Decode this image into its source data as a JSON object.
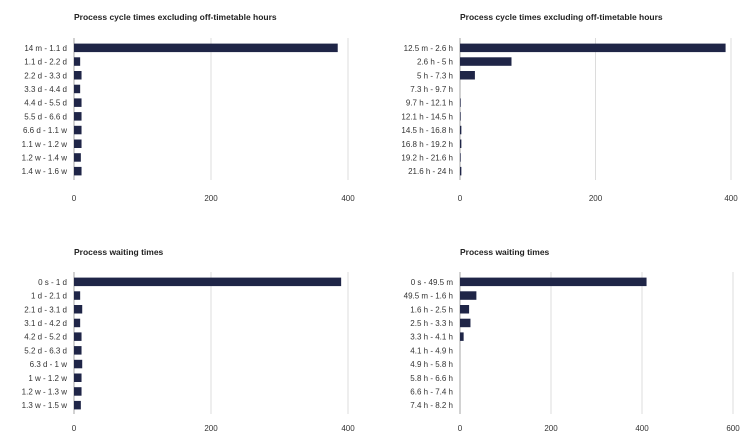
{
  "chart_data": [
    {
      "type": "bar",
      "orientation": "horizontal",
      "title": "Process cycle times excluding off-timetable hours",
      "categories": [
        "14 m - 1.1 d",
        "1.1 d - 2.2 d",
        "2.2 d - 3.3 d",
        "3.3 d - 4.4 d",
        "4.4 d - 5.5 d",
        "5.5 d - 6.6 d",
        "6.6 d - 1.1 w",
        "1.1 w - 1.2 w",
        "1.2 w - 1.4 w",
        "1.4 w - 1.6 w"
      ],
      "values": [
        385,
        9,
        11,
        9,
        11,
        11,
        11,
        11,
        10,
        11
      ],
      "xlim": [
        0,
        400
      ],
      "xticks": [
        0,
        200,
        400
      ],
      "grid": true,
      "bar_color": "#1f2547"
    },
    {
      "type": "bar",
      "orientation": "horizontal",
      "title": "Process cycle times excluding off-timetable hours",
      "categories": [
        "12.5 m - 2.6 h",
        "2.6 h - 5 h",
        "5 h - 7.3 h",
        "7.3 h - 9.7 h",
        "9.7 h - 12.1 h",
        "12.1 h - 14.5 h",
        "14.5 h - 16.8 h",
        "16.8 h - 19.2 h",
        "19.2 h - 21.6 h",
        "21.6 h - 24 h"
      ],
      "values": [
        392,
        76,
        22,
        0,
        1,
        1,
        2,
        2,
        1,
        2
      ],
      "xlim": [
        0,
        400
      ],
      "xticks": [
        0,
        200,
        400
      ],
      "grid": true,
      "bar_color": "#1f2547"
    },
    {
      "type": "bar",
      "orientation": "horizontal",
      "title": "Process waiting times",
      "categories": [
        "0 s - 1 d",
        "1 d - 2.1 d",
        "2.1 d - 3.1 d",
        "3.1 d - 4.2 d",
        "4.2 d - 5.2 d",
        "5.2 d - 6.3 d",
        "6.3 d - 1 w",
        "1 w - 1.2 w",
        "1.2 w - 1.3 w",
        "1.3 w - 1.5 w"
      ],
      "values": [
        390,
        9,
        12,
        9,
        11,
        11,
        12,
        11,
        11,
        10
      ],
      "xlim": [
        0,
        400
      ],
      "xticks": [
        0,
        200,
        400
      ],
      "grid": true,
      "bar_color": "#1f2547"
    },
    {
      "type": "bar",
      "orientation": "horizontal",
      "title": "Process waiting times",
      "categories": [
        "0 s - 49.5 m",
        "49.5 m - 1.6 h",
        "1.6 h - 2.5 h",
        "2.5 h - 3.3 h",
        "3.3 h - 4.1 h",
        "4.1 h - 4.9 h",
        "4.9 h - 5.8 h",
        "5.8 h - 6.6 h",
        "6.6 h - 7.4 h",
        "7.4 h - 8.2 h"
      ],
      "values": [
        410,
        36,
        20,
        23,
        8,
        0,
        0,
        0,
        0,
        0
      ],
      "xlim": [
        0,
        600
      ],
      "xticks": [
        0,
        200,
        400,
        600
      ],
      "grid": true,
      "bar_color": "#1f2547"
    }
  ]
}
